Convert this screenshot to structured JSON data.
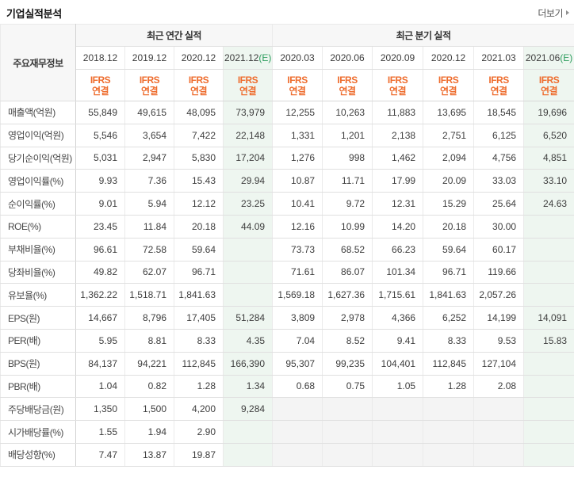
{
  "title": "기업실적분석",
  "more": {
    "label": "더보기"
  },
  "table": {
    "corner_label": "주요재무정보",
    "estimate_suffix": "(E)",
    "groups": [
      {
        "label": "최근 연간 실적",
        "span": 4
      },
      {
        "label": "최근 분기 실적",
        "span": 6
      }
    ],
    "columns": [
      {
        "period": "2018.12",
        "estimate": false,
        "standard_line1": "IFRS",
        "standard_line2": "연결"
      },
      {
        "period": "2019.12",
        "estimate": false,
        "standard_line1": "IFRS",
        "standard_line2": "연결"
      },
      {
        "period": "2020.12",
        "estimate": false,
        "standard_line1": "IFRS",
        "standard_line2": "연결"
      },
      {
        "period": "2021.12",
        "estimate": true,
        "standard_line1": "IFRS",
        "standard_line2": "연결"
      },
      {
        "period": "2020.03",
        "estimate": false,
        "standard_line1": "IFRS",
        "standard_line2": "연결"
      },
      {
        "period": "2020.06",
        "estimate": false,
        "standard_line1": "IFRS",
        "standard_line2": "연결"
      },
      {
        "period": "2020.09",
        "estimate": false,
        "standard_line1": "IFRS",
        "standard_line2": "연결"
      },
      {
        "period": "2020.12",
        "estimate": false,
        "standard_line1": "IFRS",
        "standard_line2": "연결"
      },
      {
        "period": "2021.03",
        "estimate": false,
        "standard_line1": "IFRS",
        "standard_line2": "연결"
      },
      {
        "period": "2021.06",
        "estimate": true,
        "standard_line1": "IFRS",
        "standard_line2": "연결"
      }
    ],
    "rows": [
      {
        "label": "매출액(억원)",
        "grayed_quarters": false,
        "values": [
          "55,849",
          "49,615",
          "48,095",
          "73,979",
          "12,255",
          "10,263",
          "11,883",
          "13,695",
          "18,545",
          "19,696"
        ]
      },
      {
        "label": "영업이익(억원)",
        "grayed_quarters": false,
        "values": [
          "5,546",
          "3,654",
          "7,422",
          "22,148",
          "1,331",
          "1,201",
          "2,138",
          "2,751",
          "6,125",
          "6,520"
        ]
      },
      {
        "label": "당기순이익(억원)",
        "grayed_quarters": false,
        "values": [
          "5,031",
          "2,947",
          "5,830",
          "17,204",
          "1,276",
          "998",
          "1,462",
          "2,094",
          "4,756",
          "4,851"
        ]
      },
      {
        "label": "영업이익률(%)",
        "grayed_quarters": false,
        "values": [
          "9.93",
          "7.36",
          "15.43",
          "29.94",
          "10.87",
          "11.71",
          "17.99",
          "20.09",
          "33.03",
          "33.10"
        ]
      },
      {
        "label": "순이익률(%)",
        "grayed_quarters": false,
        "values": [
          "9.01",
          "5.94",
          "12.12",
          "23.25",
          "10.41",
          "9.72",
          "12.31",
          "15.29",
          "25.64",
          "24.63"
        ]
      },
      {
        "label": "ROE(%)",
        "grayed_quarters": false,
        "values": [
          "23.45",
          "11.84",
          "20.18",
          "44.09",
          "12.16",
          "10.99",
          "14.20",
          "20.18",
          "30.00",
          ""
        ]
      },
      {
        "label": "부채비율(%)",
        "grayed_quarters": false,
        "values": [
          "96.61",
          "72.58",
          "59.64",
          "",
          "73.73",
          "68.52",
          "66.23",
          "59.64",
          "60.17",
          ""
        ]
      },
      {
        "label": "당좌비율(%)",
        "grayed_quarters": false,
        "values": [
          "49.82",
          "62.07",
          "96.71",
          "",
          "71.61",
          "86.07",
          "101.34",
          "96.71",
          "119.66",
          ""
        ]
      },
      {
        "label": "유보율(%)",
        "grayed_quarters": false,
        "values": [
          "1,362.22",
          "1,518.71",
          "1,841.63",
          "",
          "1,569.18",
          "1,627.36",
          "1,715.61",
          "1,841.63",
          "2,057.26",
          ""
        ]
      },
      {
        "label": "EPS(원)",
        "grayed_quarters": false,
        "values": [
          "14,667",
          "8,796",
          "17,405",
          "51,284",
          "3,809",
          "2,978",
          "4,366",
          "6,252",
          "14,199",
          "14,091"
        ]
      },
      {
        "label": "PER(배)",
        "grayed_quarters": false,
        "values": [
          "5.95",
          "8.81",
          "8.33",
          "4.35",
          "7.04",
          "8.52",
          "9.41",
          "8.33",
          "9.53",
          "15.83"
        ]
      },
      {
        "label": "BPS(원)",
        "grayed_quarters": false,
        "values": [
          "84,137",
          "94,221",
          "112,845",
          "166,390",
          "95,307",
          "99,235",
          "104,401",
          "112,845",
          "127,104",
          ""
        ]
      },
      {
        "label": "PBR(배)",
        "grayed_quarters": false,
        "values": [
          "1.04",
          "0.82",
          "1.28",
          "1.34",
          "0.68",
          "0.75",
          "1.05",
          "1.28",
          "2.08",
          ""
        ]
      },
      {
        "label": "주당배당금(원)",
        "grayed_quarters": true,
        "values": [
          "1,350",
          "1,500",
          "4,200",
          "9,284",
          "",
          "",
          "",
          "",
          "",
          ""
        ]
      },
      {
        "label": "시가배당률(%)",
        "grayed_quarters": true,
        "values": [
          "1.55",
          "1.94",
          "2.90",
          "",
          "",
          "",
          "",
          "",
          "",
          ""
        ]
      },
      {
        "label": "배당성향(%)",
        "grayed_quarters": true,
        "values": [
          "7.47",
          "13.87",
          "19.87",
          "",
          "",
          "",
          "",
          "",
          "",
          ""
        ]
      }
    ]
  },
  "colors": {
    "accent_orange": "#ee6c2d",
    "estimate_green": "#2f9e5f",
    "estimate_bg": "#eef6f0",
    "header_bg": "#f7f7f7",
    "disabled_bg": "#f4f4f4"
  }
}
